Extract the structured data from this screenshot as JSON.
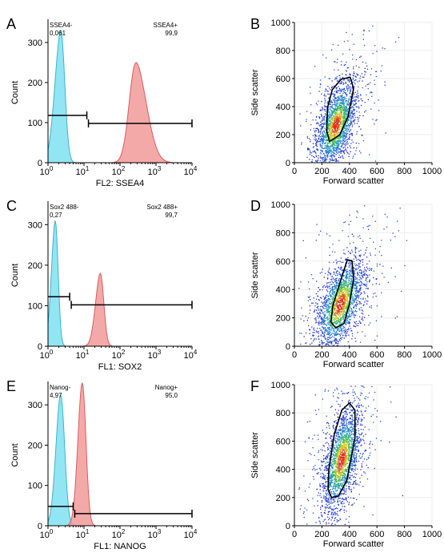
{
  "panels": [
    {
      "tag": "A",
      "kind": "histogram",
      "xlabel": "FL2: SSEA4",
      "ylabel": "Count",
      "gate_neg_label": "SSEA4-",
      "gate_neg_value": "0,061",
      "gate_pos_label": "SSEA4+",
      "gate_pos_value": "99,9",
      "ylim": [
        0,
        350
      ],
      "yticks": [
        "0",
        "100",
        "200",
        "300"
      ],
      "xlim_log10": [
        0,
        4
      ],
      "xticks": [
        "10",
        "10",
        "10",
        "10",
        "10"
      ],
      "xtick_exps": [
        "0",
        "1",
        "2",
        "3",
        "4"
      ],
      "neg_gate": [
        1,
        12
      ],
      "pos_gate": [
        12,
        10000
      ],
      "neg_gate_y": 118,
      "pos_gate_y": 98,
      "peaks": [
        {
          "name": "isotype",
          "color": "#7fe0f0",
          "edge": "#3cb4d0",
          "center_log": 0.35,
          "sd": 0.13,
          "height": 330,
          "skew": 0.6
        },
        {
          "name": "stained",
          "color": "#f29a9a",
          "edge": "#d95c5c",
          "center_log": 2.45,
          "sd": 0.22,
          "height": 250,
          "skew": -0.7
        }
      ]
    },
    {
      "tag": "B",
      "kind": "scatter",
      "xlabel": "Forward scatter",
      "ylabel": "Side scatter",
      "xlim": [
        0,
        1000
      ],
      "ylim": [
        0,
        1000
      ],
      "xticks": [
        "0",
        "200",
        "400",
        "600",
        "800",
        "1000"
      ],
      "yticks": [
        "0",
        "200",
        "400",
        "600",
        "800",
        "1000"
      ],
      "cloud": {
        "cx": 300,
        "cy": 270,
        "sx": 65,
        "sy": 160,
        "rot": 0.25
      },
      "gate": [
        [
          255,
          150
        ],
        [
          330,
          200
        ],
        [
          390,
          330
        ],
        [
          430,
          530
        ],
        [
          405,
          610
        ],
        [
          340,
          595
        ],
        [
          275,
          520
        ],
        [
          240,
          390
        ],
        [
          235,
          230
        ]
      ]
    },
    {
      "tag": "C",
      "kind": "histogram",
      "xlabel": "FL1: SOX2",
      "ylabel": "Count",
      "gate_neg_label": "Sox2 488-",
      "gate_neg_value": "0,27",
      "gate_pos_label": "Sox2 488+",
      "gate_pos_value": "99,7",
      "ylim": [
        0,
        350
      ],
      "yticks": [
        "0",
        "100",
        "200",
        "300"
      ],
      "xlim_log10": [
        0,
        4
      ],
      "xticks": [
        "10",
        "10",
        "10",
        "10",
        "10"
      ],
      "xtick_exps": [
        "0",
        "1",
        "2",
        "3",
        "4"
      ],
      "neg_gate": [
        1,
        4
      ],
      "pos_gate": [
        4,
        10000
      ],
      "neg_gate_y": 122,
      "pos_gate_y": 102,
      "peaks": [
        {
          "name": "isotype",
          "color": "#7fe0f0",
          "edge": "#3cb4d0",
          "center_log": 0.2,
          "sd": 0.09,
          "height": 310,
          "skew": 0.5
        },
        {
          "name": "stained",
          "color": "#f29a9a",
          "edge": "#d95c5c",
          "center_log": 1.45,
          "sd": 0.11,
          "height": 180,
          "skew": 0.5
        }
      ]
    },
    {
      "tag": "D",
      "kind": "scatter",
      "xlabel": "Forward scatter",
      "ylabel": "Side scatter",
      "xlim": [
        0,
        1000
      ],
      "ylim": [
        0,
        1000
      ],
      "xticks": [
        "0",
        "200",
        "400",
        "600",
        "800",
        "1000"
      ],
      "yticks": [
        "0",
        "200",
        "400",
        "600",
        "800",
        "1000"
      ],
      "cloud": {
        "cx": 330,
        "cy": 300,
        "sx": 75,
        "sy": 170,
        "rot": 0.3
      },
      "gate": [
        [
          300,
          130
        ],
        [
          360,
          160
        ],
        [
          400,
          300
        ],
        [
          430,
          470
        ],
        [
          420,
          600
        ],
        [
          385,
          610
        ],
        [
          335,
          460
        ],
        [
          280,
          290
        ],
        [
          265,
          170
        ]
      ]
    },
    {
      "tag": "E",
      "kind": "histogram",
      "xlabel": "FL1: NANOG",
      "ylabel": "Count",
      "gate_neg_label": "Nanog-",
      "gate_neg_value": "4,97",
      "gate_pos_label": "Nanog+",
      "gate_pos_value": "95,0",
      "ylim": [
        0,
        350
      ],
      "yticks": [
        "0",
        "100",
        "200",
        "300"
      ],
      "xlim_log10": [
        0,
        4
      ],
      "xticks": [
        "10",
        "10",
        "10",
        "10",
        "10"
      ],
      "xtick_exps": [
        "0",
        "1",
        "2",
        "3",
        "4"
      ],
      "neg_gate": [
        1,
        5
      ],
      "pos_gate": [
        5,
        10000
      ],
      "neg_gate_y": 48,
      "pos_gate_y": 30,
      "peaks": [
        {
          "name": "isotype",
          "color": "#7fe0f0",
          "edge": "#3cb4d0",
          "center_log": 0.35,
          "sd": 0.12,
          "height": 325,
          "skew": 0.3
        },
        {
          "name": "stained",
          "color": "#f29a9a",
          "edge": "#d95c5c",
          "center_log": 0.95,
          "sd": 0.11,
          "height": 355,
          "skew": 0.3
        }
      ]
    },
    {
      "tag": "F",
      "kind": "scatter",
      "xlabel": "Forward scatter",
      "ylabel": "Side scatter",
      "xlim": [
        0,
        1000
      ],
      "ylim": [
        0,
        1000
      ],
      "xticks": [
        "0",
        "200",
        "400",
        "600",
        "800",
        "1000"
      ],
      "yticks": [
        "0",
        "200",
        "400",
        "600",
        "800",
        "1000"
      ],
      "cloud": {
        "cx": 340,
        "cy": 470,
        "sx": 60,
        "sy": 190,
        "rot": 0.2
      },
      "gate": [
        [
          270,
          200
        ],
        [
          320,
          210
        ],
        [
          380,
          320
        ],
        [
          440,
          620
        ],
        [
          440,
          820
        ],
        [
          400,
          870
        ],
        [
          345,
          820
        ],
        [
          290,
          650
        ],
        [
          250,
          400
        ],
        [
          245,
          260
        ]
      ]
    }
  ]
}
